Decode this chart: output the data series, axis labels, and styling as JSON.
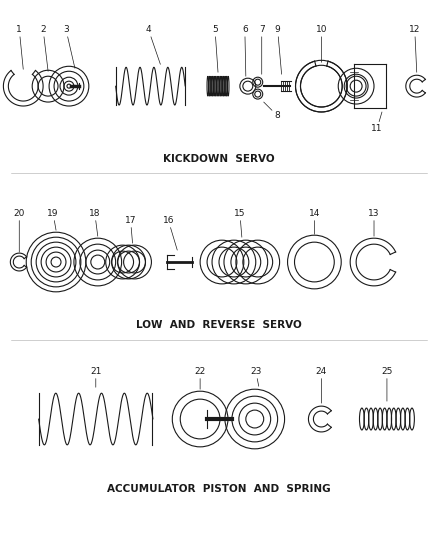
{
  "section1_label": "KICKDOWN  SERVO",
  "section2_label": "LOW  AND  REVERSE  SERVO",
  "section3_label": "ACCUMULATOR  PISTON  AND  SPRING",
  "bg_color": "#ffffff",
  "line_color": "#1a1a1a",
  "font_size_label": 7.5,
  "font_size_num": 6.5
}
